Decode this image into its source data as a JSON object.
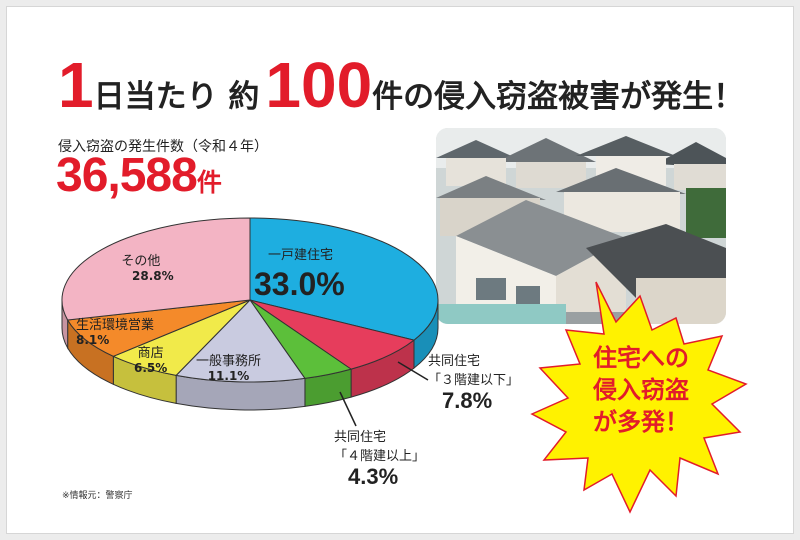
{
  "headline": {
    "num1": "1",
    "text1": "日当たり 約",
    "num2": "100",
    "text2": "件の侵入窃盗被害が発生！"
  },
  "stat": {
    "label": "侵入窃盗の発生件数（令和４年）",
    "value": "36,588",
    "unit": "件"
  },
  "burst": {
    "line1": "住宅への",
    "line2": "侵入窃盗",
    "line3": "が多発！",
    "color": "#fff200"
  },
  "source": "※情報元：警察庁",
  "chart_data": {
    "type": "pie",
    "title": "",
    "slices": [
      {
        "name": "一戸建住宅",
        "value": 33.0,
        "label": "33.0%",
        "color": "#1eaee0"
      },
      {
        "name": "共同住宅「３階建以下」",
        "value": 7.8,
        "label": "7.8%",
        "color": "#e63d5c"
      },
      {
        "name": "共同住宅「４階建以上」",
        "value": 4.3,
        "label": "4.3%",
        "color": "#5cbf3a"
      },
      {
        "name": "一般事務所",
        "value": 11.1,
        "label": "11.1%",
        "color": "#c9cbe0"
      },
      {
        "name": "商店",
        "value": 6.5,
        "label": "6.5%",
        "color": "#f1ea4a"
      },
      {
        "name": "生活環境営業",
        "value": 8.1,
        "label": "8.1%",
        "color": "#f48a2a"
      },
      {
        "name": "その他",
        "value": 28.8,
        "label": "28.8%",
        "color": "#f3b4c4"
      }
    ],
    "labels": {
      "detached_name": "一戸建住宅",
      "detached_pct": "33.0%",
      "apt_low_name1": "共同住宅",
      "apt_low_name2": "「３階建以下」",
      "apt_low_pct": "7.8%",
      "apt_high_name1": "共同住宅",
      "apt_high_name2": "「４階建以上」",
      "apt_high_pct": "4.3%",
      "office_name": "一般事務所",
      "office_pct": "11.1%",
      "shop_name": "商店",
      "shop_pct": "6.5%",
      "service_name": "生活環境営業",
      "service_pct": "8.1%",
      "other_name": "その他",
      "other_pct": "28.8%"
    }
  }
}
